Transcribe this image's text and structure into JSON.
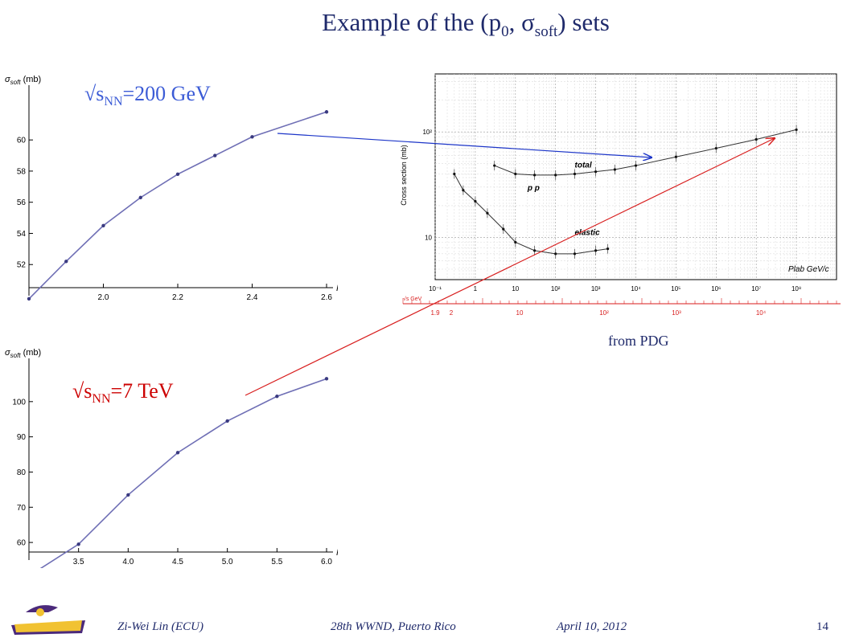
{
  "slide": {
    "title_main": "Example of the (p",
    "title_sub0": "0",
    "title_mid": ", σ",
    "title_sub1": "soft",
    "title_end": ") sets",
    "label_top_pre": "√s",
    "label_top_sub": "NN",
    "label_top_post": "=200 GeV",
    "label_bottom_pre": "√s",
    "label_bottom_sub": "NN",
    "label_bottom_post": "=7 TeV",
    "pdg_note": "from PDG",
    "footer_author": "Zi-Wei Lin (ECU)",
    "footer_event": "28th WWND, Puerto Rico",
    "footer_date": "April 10, 2012",
    "page_number": "14",
    "logo_text": "PIRATES",
    "colors": {
      "title": "#1f2a6b",
      "label_top": "#3b5bd6",
      "label_bottom": "#cc0000",
      "curve": "#6f6fb5",
      "arrow_blue": "#1c35c8",
      "arrow_red": "#d81e1e"
    }
  },
  "chart_data": [
    {
      "type": "line",
      "ylabel": "σsoft (mb)",
      "xlabel": "P0 (GeV/c)",
      "x": [
        1.8,
        1.9,
        2.0,
        2.1,
        2.2,
        2.3,
        2.4,
        2.6
      ],
      "y": [
        49.8,
        52.2,
        54.5,
        56.3,
        57.8,
        59.0,
        60.2,
        61.8
      ],
      "xticks": [
        "2.0",
        "2.2",
        "2.4",
        "2.6"
      ],
      "yticks": [
        "52",
        "54",
        "56",
        "58",
        "60"
      ],
      "xlim": [
        1.8,
        2.6
      ],
      "ylim": [
        50.0,
        63.0
      ]
    },
    {
      "type": "line",
      "ylabel": "σsoft (mb)",
      "xlabel": "P0 (GeV/c)",
      "x": [
        3.0,
        3.5,
        4.0,
        4.5,
        5.0,
        5.5,
        6.0
      ],
      "y": [
        50.5,
        59.5,
        73.5,
        85.5,
        94.5,
        101.5,
        106.5
      ],
      "xticks": [
        "3.5",
        "4.0",
        "4.5",
        "5.0",
        "5.5",
        "6.0"
      ],
      "yticks": [
        "60",
        "70",
        "80",
        "90",
        "100"
      ],
      "xlim": [
        3.0,
        6.0
      ],
      "ylim": [
        55.0,
        110.0
      ]
    },
    {
      "type": "scatter",
      "ylabel": "Cross section (mb)",
      "xlabel": "Plab GeV/c",
      "x_scale": "log",
      "y_scale": "log",
      "xticks": [
        "10⁻¹",
        "1",
        "10",
        "10²",
        "10³",
        "10⁴",
        "10⁵",
        "10⁶",
        "10⁷",
        "10⁸"
      ],
      "yticks": [
        "10",
        "10²"
      ],
      "secondary_axis_label": "√s GeV",
      "secondary_ticks": [
        "1.9",
        "2",
        "10",
        "10²",
        "10³",
        "10⁴"
      ],
      "annotations": [
        "total",
        "p p",
        "elastic"
      ],
      "series": [
        {
          "name": "total",
          "x": [
            3,
            10,
            30,
            100,
            300,
            1000,
            3000,
            10000,
            100000,
            1000000,
            10000000,
            100000000
          ],
          "y": [
            48,
            40,
            39,
            39,
            40,
            42,
            44,
            48,
            58,
            70,
            85,
            105
          ]
        },
        {
          "name": "elastic",
          "x": [
            0.3,
            0.5,
            1,
            2,
            5,
            10,
            30,
            100,
            300,
            1000,
            2000
          ],
          "y": [
            40,
            28,
            22,
            17,
            12,
            9,
            7.5,
            7,
            7,
            7.5,
            7.8
          ]
        }
      ]
    }
  ]
}
